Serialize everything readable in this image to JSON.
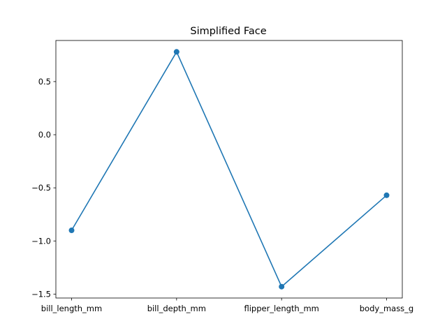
{
  "chart_data": {
    "type": "line",
    "title": "Simplified Face",
    "xlabel": "",
    "ylabel": "",
    "categories": [
      "bill_length_mm",
      "bill_depth_mm",
      "flipper_length_mm",
      "body_mass_g"
    ],
    "values": [
      -0.9,
      0.78,
      -1.43,
      -0.57
    ],
    "y_ticks": [
      {
        "value": -1.5,
        "label": "−1.5"
      },
      {
        "value": -1.0,
        "label": "−1.0"
      },
      {
        "value": -0.5,
        "label": "−0.5"
      },
      {
        "value": 0.0,
        "label": "0.0"
      },
      {
        "value": 0.5,
        "label": "0.5"
      }
    ],
    "ylim": [
      -1.537,
      0.887
    ],
    "grid": false,
    "markers": true,
    "colors": {
      "series": "#1f77b4",
      "axes": "#000000",
      "background": "#ffffff"
    }
  }
}
